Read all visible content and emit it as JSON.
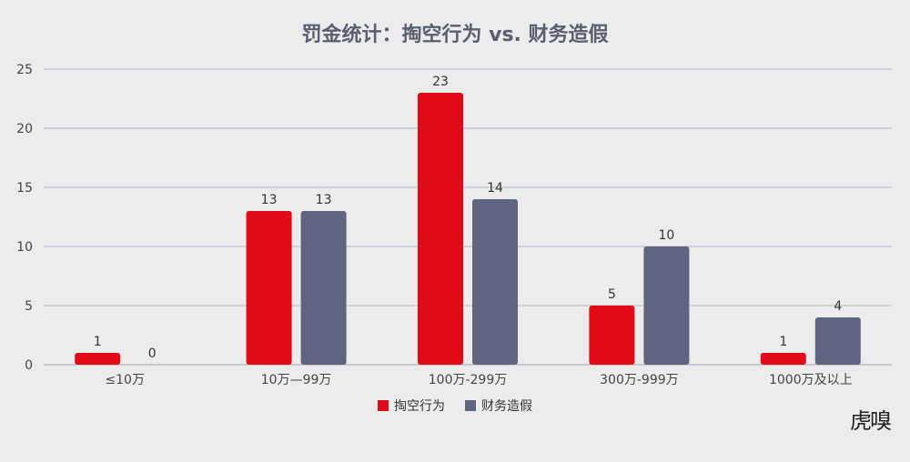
{
  "chart_data": {
    "type": "bar",
    "title": "罚金统计：掏空行为 vs. 财务造假",
    "categories": [
      "≤10万",
      "10万—99万",
      "100万-299万",
      "300万-999万",
      "1000万及以上"
    ],
    "series": [
      {
        "name": "掏空行为",
        "values": [
          1,
          13,
          23,
          5,
          1
        ],
        "color": "#e10a17"
      },
      {
        "name": "财务造假",
        "values": [
          0,
          13,
          14,
          10,
          4
        ],
        "color": "#606480"
      }
    ],
    "ylim": [
      0,
      25
    ],
    "yticks": [
      0,
      5,
      10,
      15,
      20,
      25
    ],
    "grid": true,
    "legend_position": "bottom"
  },
  "watermark": "虎嗅"
}
